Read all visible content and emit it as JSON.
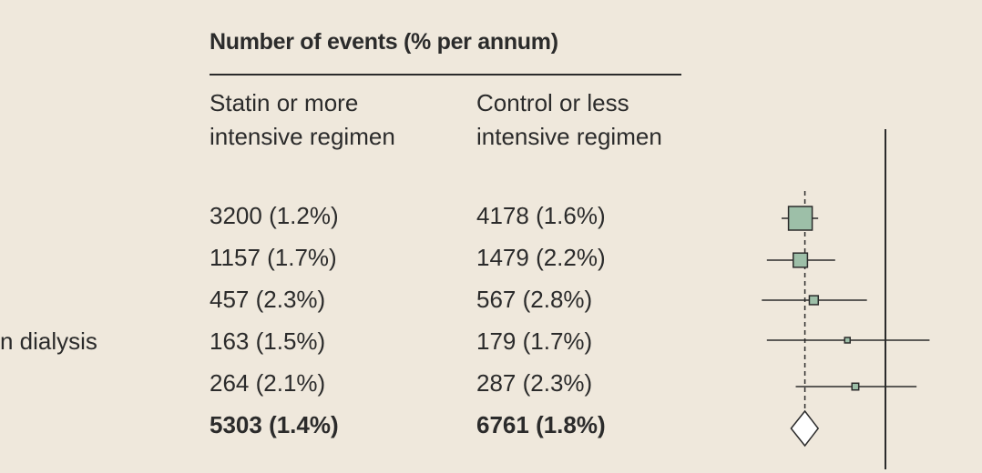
{
  "header": {
    "title": "Number of events (% per annum)"
  },
  "columns": {
    "statin": "Statin or more intensive regimen",
    "control": "Control or less intensive regimen"
  },
  "rows": [
    {
      "label": "",
      "statin": "3200 (1.2%)",
      "control": "4178 (1.6%)",
      "rr": 0.79,
      "lo": 0.75,
      "hi": 0.83,
      "weight": 3200
    },
    {
      "label": "",
      "statin": "1157 (1.7%)",
      "control": "1479 (2.2%)",
      "rr": 0.79,
      "lo": 0.72,
      "hi": 0.87,
      "weight": 1157
    },
    {
      "label": "",
      "statin": "457 (2.3%)",
      "control": "567 (2.8%)",
      "rr": 0.82,
      "lo": 0.71,
      "hi": 0.95,
      "weight": 457
    },
    {
      "label": "n dialysis",
      "statin": "163 (1.5%)",
      "control": "179 (1.7%)",
      "rr": 0.9,
      "lo": 0.72,
      "hi": 1.13,
      "weight": 163
    },
    {
      "label": "",
      "statin": "264 (2.1%)",
      "control": "287 (2.3%)",
      "rr": 0.92,
      "lo": 0.78,
      "hi": 1.09,
      "weight": 264
    },
    {
      "label": "",
      "statin": "5303 (1.4%)",
      "control": "6761 (1.8%)",
      "rr": 0.8,
      "lo": 0.77,
      "hi": 0.83,
      "weight": 5303,
      "total": true
    }
  ],
  "chart_data": {
    "type": "forest",
    "null_line": 1.0,
    "overall_line": 0.8,
    "x_min": 0.7,
    "x_max": 1.2,
    "colors": {
      "marker_fill": "#9dbfa8",
      "line": "#2b2b2b"
    }
  }
}
